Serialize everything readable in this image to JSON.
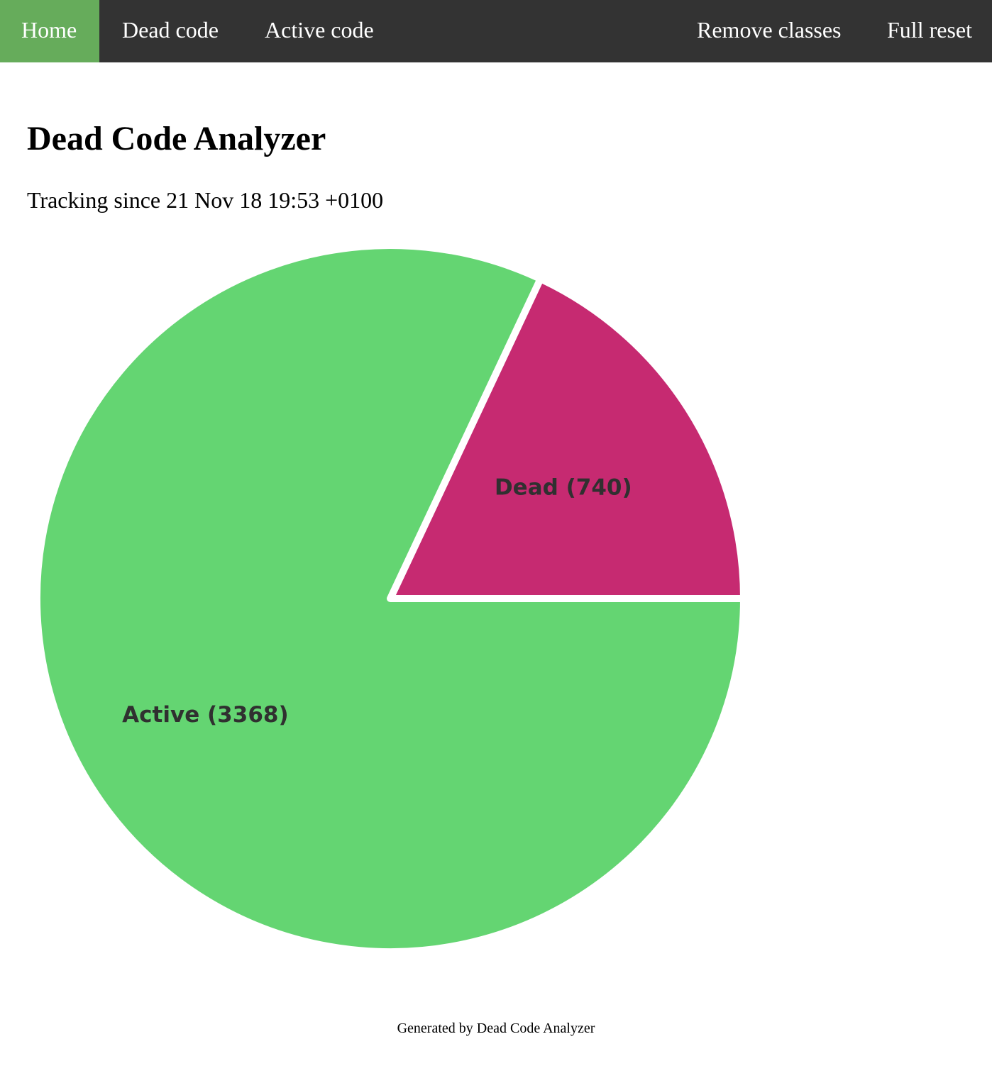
{
  "nav": {
    "home": "Home",
    "dead_code": "Dead code",
    "active_code": "Active code",
    "remove_classes": "Remove classes",
    "full_reset": "Full reset"
  },
  "page": {
    "title": "Dead Code Analyzer",
    "subtitle": "Tracking since 21 Nov 18 19:53 +0100"
  },
  "chart_data": {
    "type": "pie",
    "slices": [
      {
        "name": "Dead",
        "value": 740,
        "label": "Dead (740)",
        "color": "#c62a71"
      },
      {
        "name": "Active",
        "value": 3368,
        "label": "Active (3368)",
        "color": "#64d572"
      }
    ],
    "start": "3 o'clock",
    "direction": "counterclockwise",
    "legend": "none"
  },
  "colors": {
    "nav_background": "#333333",
    "nav_active": "#66ac5b"
  },
  "footer": {
    "text": "Generated by Dead Code Analyzer"
  }
}
